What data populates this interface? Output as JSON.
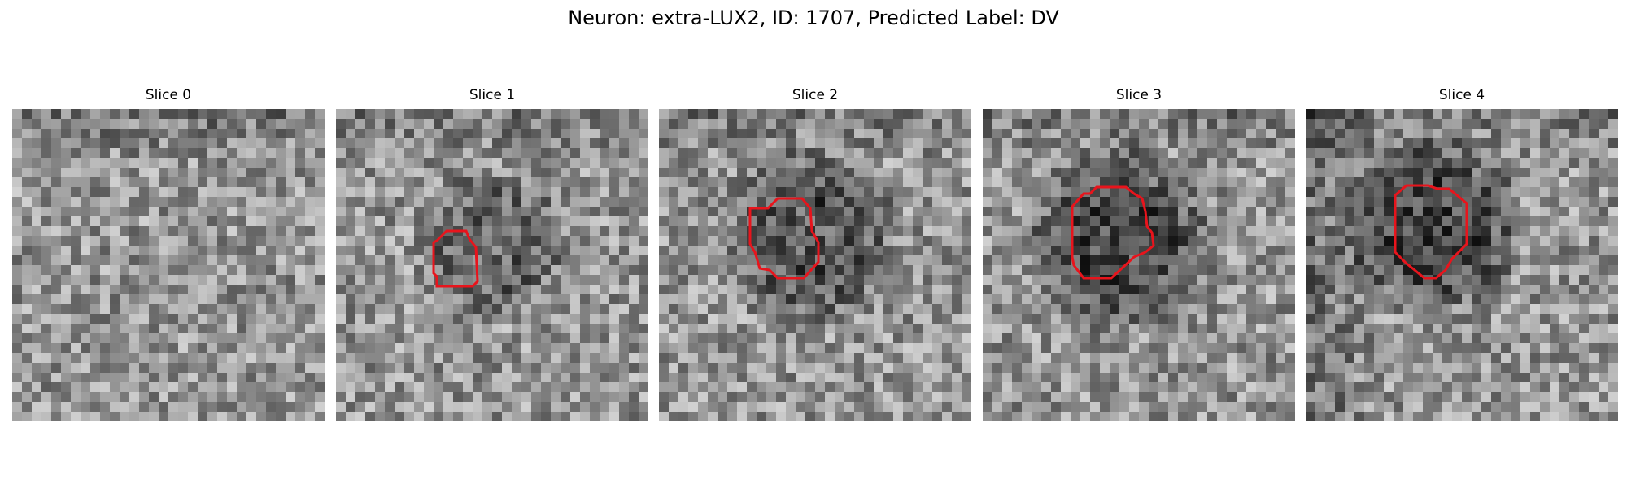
{
  "figure": {
    "title": "Neuron: extra-LUX2, ID: 1707, Predicted Label: DV"
  },
  "slices": [
    {
      "label": "Slice 0",
      "has_roi": false
    },
    {
      "label": "Slice 1",
      "has_roi": true
    },
    {
      "label": "Slice 2",
      "has_roi": true
    },
    {
      "label": "Slice 3",
      "has_roi": true
    },
    {
      "label": "Slice 4",
      "has_roi": true
    }
  ],
  "colors": {
    "roi_outline": "#e8141c"
  }
}
